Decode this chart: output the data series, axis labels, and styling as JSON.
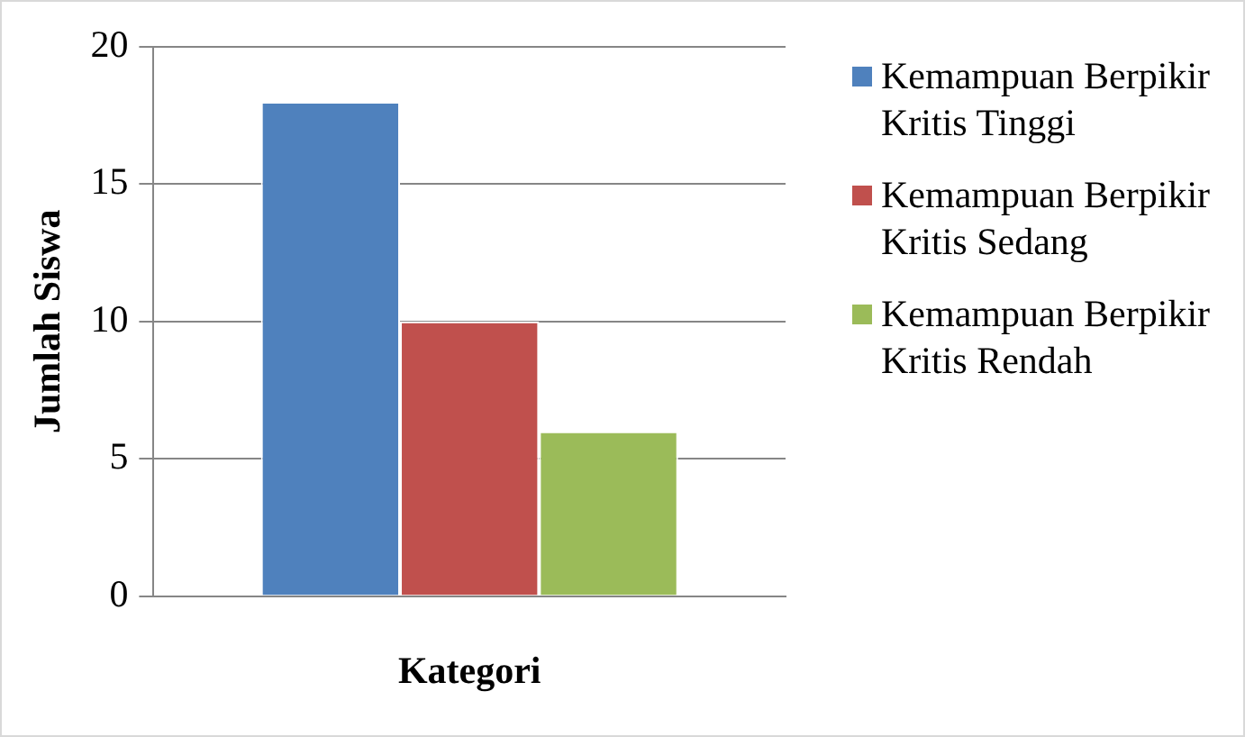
{
  "chart_data": {
    "type": "bar",
    "xlabel": "Kategori",
    "ylabel": "Jumlah Siswa",
    "categories": [
      null
    ],
    "series": [
      {
        "name": "Kemampuan Berpikir Kritis Tinggi",
        "color": "#4f81bd",
        "values": [
          18
        ]
      },
      {
        "name": "Kemampuan Berpikir Kritis Sedang",
        "color": "#c0504d",
        "values": [
          10
        ]
      },
      {
        "name": "Kemampuan Berpikir Kritis Rendah",
        "color": "#9bbb59",
        "values": [
          6
        ]
      }
    ],
    "ylim": [
      0,
      20
    ],
    "yticks": [
      0,
      5,
      10,
      15,
      20
    ],
    "grid": "y",
    "legend": "right"
  }
}
